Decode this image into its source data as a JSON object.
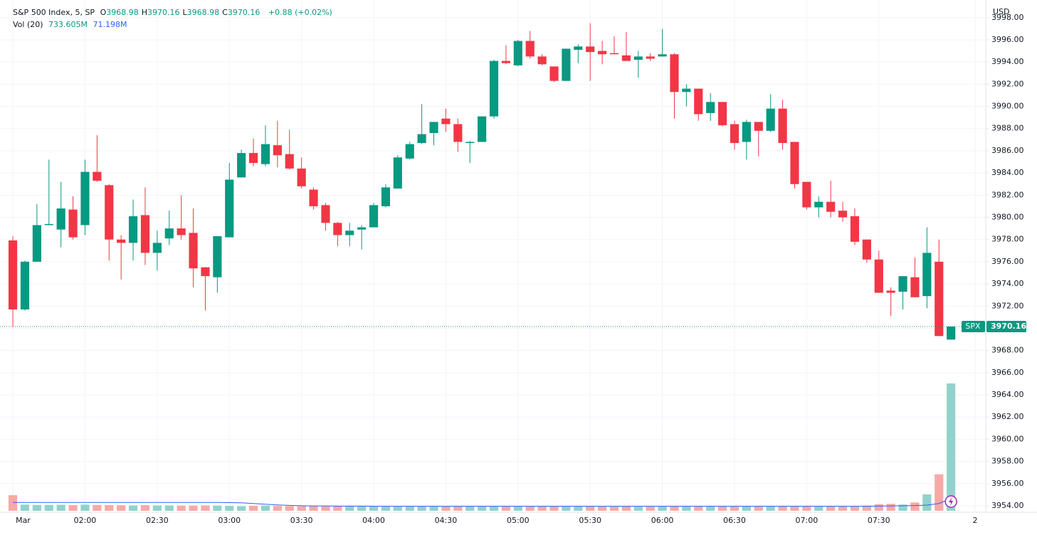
{
  "chart_data": {
    "type": "candlestick",
    "title": "S&P 500 Index, 5, SP",
    "legend_fields": [
      "O",
      "H",
      "L",
      "C"
    ],
    "change": "+0.88 (+0.02%)",
    "volume_title": "Vol (20)",
    "volume_last_label": "733.605M",
    "volume_ma_last_label": "71.198M",
    "currency": "USD",
    "symbol": "SPX",
    "up_color": "#089981",
    "down_color": "#f23645",
    "volume_up_color": "#92d2cc",
    "volume_down_color": "#f7a9a7",
    "volume_ma_color": "#2962ff",
    "open": [
      3977.92,
      3971.7,
      3976.0,
      3979.3,
      3978.9,
      3980.7,
      3979.3,
      3984.1,
      3982.9,
      3978.0,
      3977.7,
      3980.2,
      3976.8,
      3978.1,
      3979.0,
      3978.6,
      3975.5,
      3974.6,
      3978.2,
      3983.6,
      3985.8,
      3984.8,
      3986.5,
      3985.7,
      3984.4,
      3982.5,
      3981.1,
      3979.5,
      3978.4,
      3978.9,
      3979.1,
      3981.0,
      3982.6,
      3985.3,
      3986.7,
      3987.6,
      3988.9,
      3988.4,
      3986.7,
      3986.8,
      3989.1,
      3994.1,
      3993.7,
      3995.9,
      3994.5,
      3993.6,
      3992.3,
      3995.1,
      3995.4,
      3995.0,
      3994.8,
      3994.6,
      3994.2,
      3994.5,
      3994.5,
      3994.7,
      3991.3,
      3991.6,
      3989.4,
      3990.4,
      3988.4,
      3986.8,
      3988.6,
      3987.8,
      3989.8,
      3986.8,
      3983.2,
      3980.9,
      3981.4,
      3980.6,
      3980.1,
      3978.0,
      3976.2,
      3973.4,
      3973.3,
      3974.6,
      3972.9,
      3976.0,
      3968.98
    ],
    "high": [
      3978.3,
      3976.1,
      3981.2,
      3985.2,
      3983.2,
      3981.9,
      3985.2,
      3987.4,
      3983.0,
      3978.4,
      3981.6,
      3982.7,
      3978.8,
      3980.6,
      3982.0,
      3980.8,
      3975.5,
      3978.3,
      3984.9,
      3986.1,
      3987.1,
      3988.3,
      3988.7,
      3987.9,
      3985.4,
      3982.7,
      3981.3,
      3979.6,
      3979.5,
      3979.3,
      3981.3,
      3983.0,
      3985.6,
      3986.8,
      3990.2,
      3988.6,
      3989.8,
      3988.9,
      3986.9,
      3989.1,
      3994.2,
      3995.5,
      3996.0,
      3996.8,
      3994.7,
      3993.6,
      3995.2,
      3995.6,
      3997.5,
      3995.9,
      3996.3,
      3996.7,
      3995.0,
      3994.8,
      3997.0,
      3994.8,
      3992.0,
      3991.6,
      3991.2,
      3990.4,
      3988.7,
      3988.8,
      3988.6,
      3991.1,
      3990.6,
      3986.8,
      3983.2,
      3981.9,
      3983.3,
      3981.4,
      3980.8,
      3978.0,
      3977.0,
      3973.7,
      3974.7,
      3976.4,
      3979.1,
      3978.0,
      3970.16
    ],
    "low": [
      3970.1,
      3971.6,
      3976.0,
      3979.3,
      3977.3,
      3978.0,
      3978.4,
      3983.2,
      3976.1,
      3974.4,
      3976.1,
      3975.7,
      3975.2,
      3977.5,
      3978.0,
      3973.7,
      3971.6,
      3973.2,
      3978.2,
      3983.6,
      3984.6,
      3984.6,
      3984.5,
      3984.3,
      3982.6,
      3980.7,
      3978.8,
      3977.4,
      3977.4,
      3977.1,
      3979.1,
      3980.9,
      3982.6,
      3985.2,
      3986.6,
      3986.5,
      3987.7,
      3985.9,
      3984.9,
      3986.8,
      3988.9,
      3993.8,
      3993.6,
      3994.3,
      3993.7,
      3992.2,
      3992.3,
      3993.9,
      3992.3,
      3993.8,
      3994.7,
      3994.1,
      3992.6,
      3994.1,
      3994.5,
      3988.9,
      3990.0,
      3988.7,
      3988.7,
      3988.2,
      3986.1,
      3985.2,
      3985.5,
      3987.7,
      3986.1,
      3982.6,
      3980.7,
      3980.0,
      3980.0,
      3979.6,
      3977.5,
      3975.9,
      3973.2,
      3971.1,
      3971.7,
      3972.8,
      3971.8,
      3969.3,
      3968.98
    ],
    "close": [
      3971.7,
      3976.0,
      3979.3,
      3979.4,
      3980.8,
      3978.2,
      3984.1,
      3983.3,
      3978.0,
      3977.7,
      3980.1,
      3976.8,
      3977.7,
      3979.0,
      3978.4,
      3975.4,
      3974.7,
      3978.3,
      3983.4,
      3985.8,
      3984.9,
      3986.6,
      3985.6,
      3984.4,
      3982.8,
      3981.0,
      3979.5,
      3978.4,
      3978.8,
      3979.1,
      3981.1,
      3982.7,
      3985.4,
      3986.6,
      3987.5,
      3988.6,
      3988.4,
      3986.8,
      3986.8,
      3989.1,
      3994.1,
      3993.9,
      3995.9,
      3994.5,
      3993.8,
      3992.3,
      3995.2,
      3995.4,
      3994.9,
      3994.7,
      3994.7,
      3994.1,
      3994.5,
      3994.3,
      3994.7,
      3991.3,
      3991.6,
      3989.3,
      3990.4,
      3988.3,
      3986.7,
      3988.6,
      3987.8,
      3989.8,
      3986.7,
      3983.0,
      3980.9,
      3981.4,
      3980.5,
      3980.0,
      3977.8,
      3976.2,
      3973.2,
      3973.2,
      3974.7,
      3972.8,
      3976.8,
      3969.3,
      3970.16
    ],
    "volume": [
      90,
      36,
      34,
      34,
      35,
      33,
      36,
      34,
      33,
      32,
      31,
      33,
      31,
      31,
      30,
      30,
      31,
      30,
      28,
      27,
      29,
      30,
      28,
      27,
      27,
      27,
      26,
      27,
      27,
      26,
      26,
      26,
      26,
      26,
      26,
      25,
      25,
      26,
      25,
      26,
      27,
      26,
      27,
      26,
      26,
      25,
      25,
      25,
      25,
      25,
      24,
      25,
      24,
      24,
      25,
      26,
      26,
      25,
      25,
      25,
      25,
      25,
      25,
      26,
      27,
      28,
      26,
      25,
      25,
      25,
      27,
      30,
      38,
      40,
      36,
      48,
      95,
      210,
      733.605
    ],
    "volume_ma": [
      48,
      48,
      48,
      48,
      48,
      48,
      48,
      48,
      48,
      48,
      48,
      48,
      48,
      48,
      48,
      48,
      48,
      48,
      47,
      46,
      42,
      38,
      34,
      31,
      29,
      28,
      28,
      27,
      27,
      27,
      26,
      26,
      26,
      26,
      26,
      26,
      26,
      26,
      26,
      26,
      26,
      26,
      26,
      26,
      26,
      26,
      26,
      26,
      26,
      26,
      26,
      26,
      26,
      26,
      26,
      26,
      26,
      26,
      26,
      26,
      26,
      26,
      26,
      26,
      26,
      26,
      26,
      26,
      26,
      26,
      26,
      26,
      27,
      28,
      29,
      30,
      33,
      42,
      71.198
    ],
    "xlim": [
      -1.07,
      80.89
    ],
    "xticks": [
      {
        "value": 0,
        "label": "Mar"
      },
      {
        "value": 6,
        "label": "02:00"
      },
      {
        "value": 12,
        "label": "02:30"
      },
      {
        "value": 18,
        "label": "03:00"
      },
      {
        "value": 24,
        "label": "03:30"
      },
      {
        "value": 30,
        "label": "04:00"
      },
      {
        "value": 36,
        "label": "04:30"
      },
      {
        "value": 42,
        "label": "05:00"
      },
      {
        "value": 48,
        "label": "05:30"
      },
      {
        "value": 54,
        "label": "06:00"
      },
      {
        "value": 60,
        "label": "06:30"
      },
      {
        "value": 66,
        "label": "07:00"
      },
      {
        "value": 72,
        "label": "07:30"
      },
      {
        "value": 80,
        "label": "2"
      }
    ],
    "ylim": [
      3953.42,
      3999.27
    ],
    "yticks": [
      {
        "value": 3954,
        "label": "3954.00"
      },
      {
        "value": 3956,
        "label": "3956.00"
      },
      {
        "value": 3958,
        "label": "3958.00"
      },
      {
        "value": 3960,
        "label": "3960.00"
      },
      {
        "value": 3962,
        "label": "3962.00"
      },
      {
        "value": 3964,
        "label": "3964.00"
      },
      {
        "value": 3966,
        "label": "3966.00"
      },
      {
        "value": 3968,
        "label": "3968.00"
      },
      {
        "value": 3970,
        "label": "3970.00"
      },
      {
        "value": 3972,
        "label": "3972.00"
      },
      {
        "value": 3974,
        "label": "3974.00"
      },
      {
        "value": 3976,
        "label": "3976.00"
      },
      {
        "value": 3978,
        "label": "3978.00"
      },
      {
        "value": 3980,
        "label": "3980.00"
      },
      {
        "value": 3982,
        "label": "3982.00"
      },
      {
        "value": 3984,
        "label": "3984.00"
      },
      {
        "value": 3986,
        "label": "3986.00"
      },
      {
        "value": 3988,
        "label": "3988.00"
      },
      {
        "value": 3990,
        "label": "3990.00"
      },
      {
        "value": 3992,
        "label": "3992.00"
      },
      {
        "value": 3994,
        "label": "3994.00"
      },
      {
        "value": 3996,
        "label": "3996.00"
      },
      {
        "value": 3998,
        "label": "3998.00"
      }
    ],
    "grid": true
  }
}
